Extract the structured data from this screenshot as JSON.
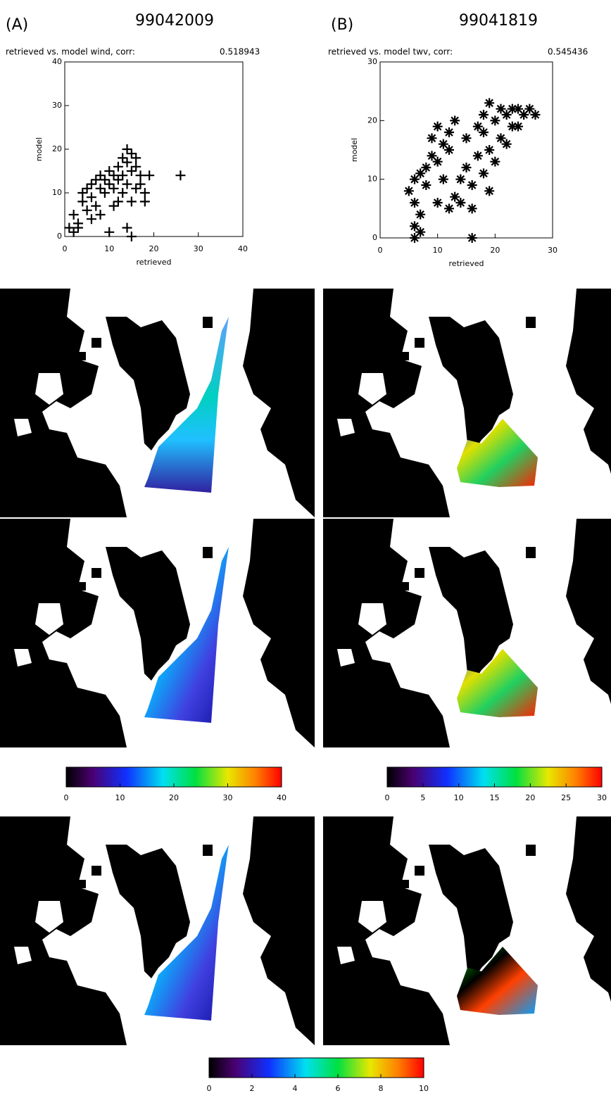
{
  "chart_data": [
    {
      "type": "scatter",
      "panel": "(A)",
      "title": "99042009",
      "subtitle": "retrieved vs. model wind, corr:",
      "corr": 0.518943,
      "xlabel": "retrieved",
      "ylabel": "model",
      "marker": "plus",
      "color": "#000000",
      "xlim": [
        0,
        40
      ],
      "ylim": [
        0,
        40
      ],
      "xticks": [
        0,
        10,
        20,
        30,
        40
      ],
      "yticks": [
        0,
        10,
        20,
        30,
        40
      ],
      "x": [
        1,
        2,
        3,
        2,
        4,
        4,
        5,
        5,
        6,
        6,
        7,
        7,
        8,
        8,
        9,
        9,
        10,
        10,
        11,
        11,
        12,
        12,
        13,
        13,
        14,
        14,
        14,
        15,
        15,
        16,
        16,
        17,
        17,
        18,
        19,
        26,
        10,
        14,
        15,
        3,
        6,
        8,
        12,
        13,
        15,
        16,
        18,
        11
      ],
      "y": [
        2,
        1,
        3,
        5,
        8,
        10,
        6,
        11,
        9,
        12,
        7,
        13,
        11,
        14,
        10,
        13,
        12,
        15,
        11,
        14,
        13,
        16,
        14,
        18,
        12,
        17,
        20,
        15,
        19,
        16,
        18,
        14,
        12,
        10,
        14,
        14,
        1,
        2,
        0,
        2,
        4,
        5,
        8,
        10,
        8,
        11,
        8,
        7
      ]
    },
    {
      "type": "scatter",
      "panel": "(B)",
      "title": "99041819",
      "subtitle": "retrieved vs. model twv, corr:",
      "corr": 0.545436,
      "xlabel": "retrieved",
      "ylabel": "model",
      "marker": "star",
      "color": "#000000",
      "xlim": [
        0,
        30
      ],
      "ylim": [
        0,
        30
      ],
      "xticks": [
        0,
        10,
        20,
        30
      ],
      "yticks": [
        0,
        10,
        20,
        30
      ],
      "x": [
        6,
        6,
        7,
        7,
        6,
        5,
        6,
        7,
        8,
        9,
        9,
        10,
        10,
        11,
        12,
        13,
        12,
        13,
        14,
        14,
        15,
        15,
        16,
        16,
        17,
        17,
        18,
        18,
        19,
        19,
        19,
        20,
        20,
        21,
        21,
        22,
        22,
        23,
        23,
        24,
        24,
        25,
        26,
        27,
        8,
        10,
        11,
        12,
        16,
        18
      ],
      "y": [
        0,
        2,
        1,
        4,
        6,
        8,
        10,
        11,
        12,
        14,
        17,
        19,
        13,
        16,
        18,
        20,
        15,
        7,
        10,
        6,
        12,
        17,
        5,
        9,
        14,
        19,
        18,
        21,
        23,
        15,
        8,
        20,
        13,
        22,
        17,
        21,
        16,
        22,
        19,
        22,
        19,
        21,
        22,
        21,
        9,
        6,
        10,
        5,
        0,
        11
      ]
    },
    {
      "type": "colorbar",
      "xlim": [
        0,
        40
      ],
      "xticks": [
        0,
        10,
        20,
        30,
        40
      ]
    },
    {
      "type": "colorbar",
      "xlim": [
        0,
        30
      ],
      "xticks": [
        0,
        5,
        10,
        15,
        20,
        25,
        30
      ]
    },
    {
      "type": "colorbar",
      "xlim": [
        0,
        10
      ],
      "xticks": [
        0,
        2,
        4,
        6,
        8,
        10
      ]
    }
  ]
}
